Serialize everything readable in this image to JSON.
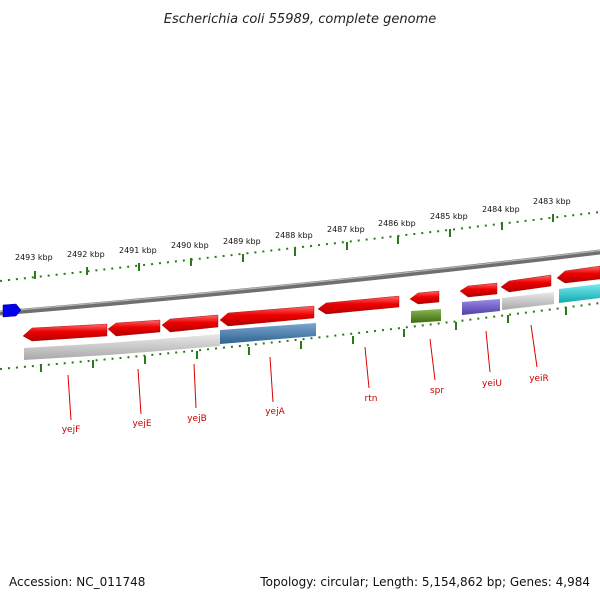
{
  "title": "Escherichia coli 55989, complete genome",
  "footer": {
    "accession": "Accession: NC_011748",
    "summary": "Topology: circular; Length: 5,154,862 bp; Genes: 4,984"
  },
  "ruler_labels": [
    "2493 kbp",
    "2492 kbp",
    "2491 kbp",
    "2490 kbp",
    "2489 kbp",
    "2488 kbp",
    "2487 kbp",
    "2486 kbp",
    "2485 kbp",
    "2484 kbp",
    "2483 kbp"
  ],
  "gene_labels": [
    "yejF",
    "yejE",
    "yejB",
    "yejA",
    "rtn",
    "spr",
    "yeiU",
    "yeiR"
  ],
  "colors": {
    "forward_arrow": "#0000ee",
    "gene_arrow": "#ee0000",
    "backbone": "#7a7a7a",
    "tick": "#2a7a1a",
    "label_text": "#cc0000",
    "feature_gray": "#c0c0c0",
    "feature_blue": "#4a7fb0",
    "feature_olive": "#5a8a20",
    "feature_purple": "#7060c8",
    "feature_cyan": "#18c8d0"
  }
}
